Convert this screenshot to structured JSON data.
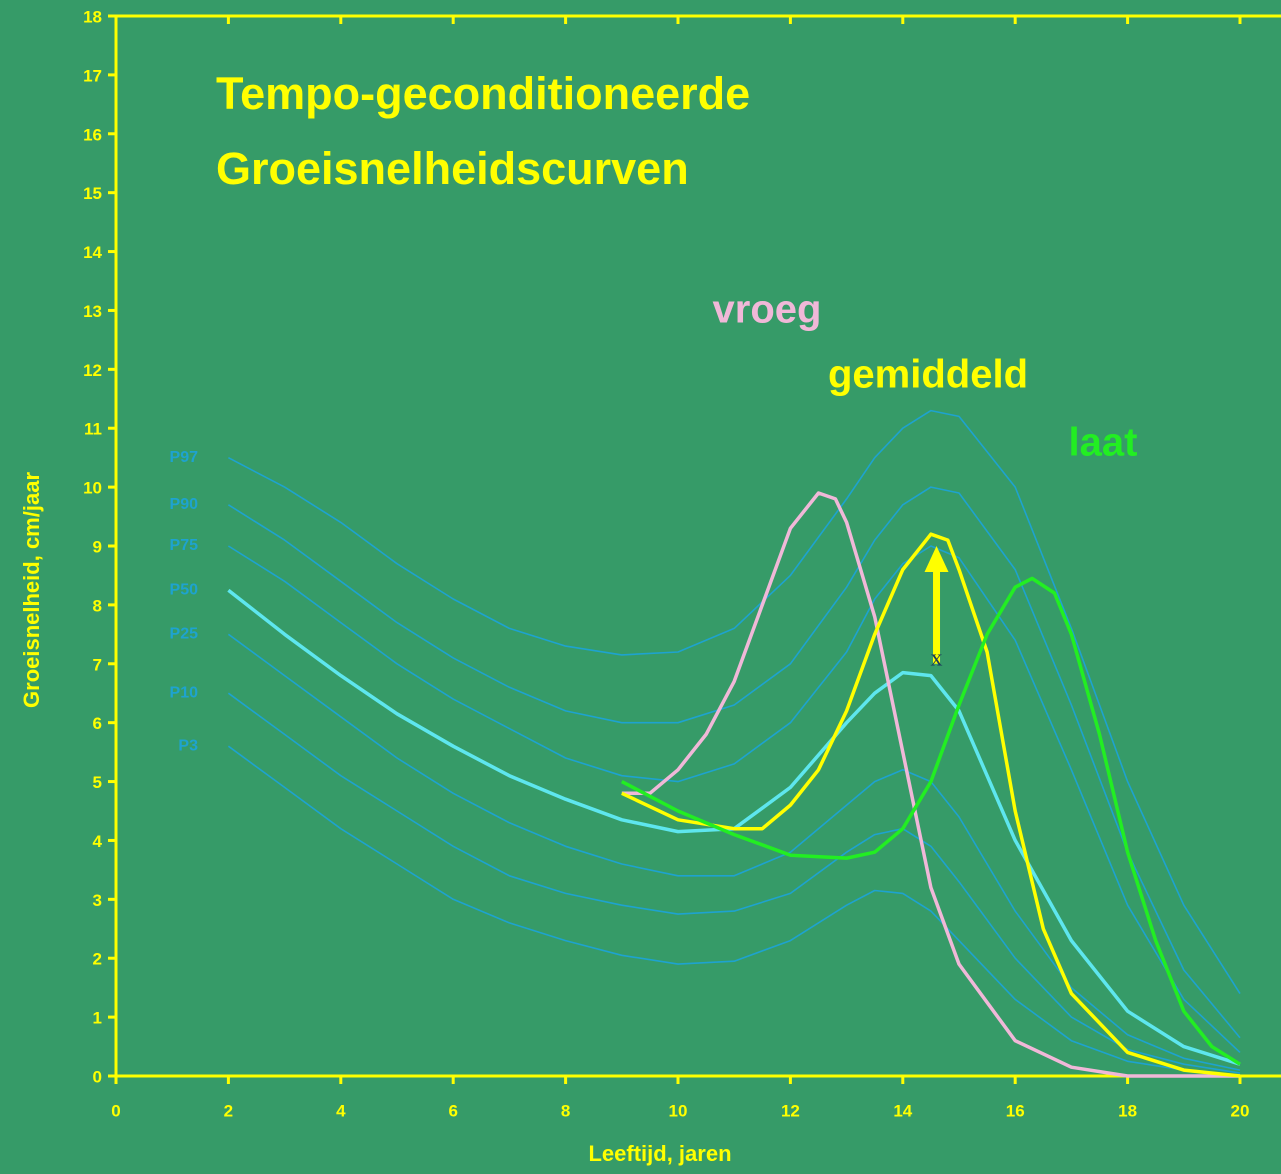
{
  "chart_data": {
    "type": "line",
    "title": [
      "Tempo-geconditioneerde",
      "Groeisnelheidscurven"
    ],
    "xlabel": "Leeftijd, jaren",
    "ylabel": "Groeisnelheid, cm/jaar",
    "xlim": [
      0,
      20
    ],
    "ylim": [
      0,
      18
    ],
    "xticks": [
      0,
      2,
      4,
      6,
      8,
      10,
      12,
      14,
      16,
      18,
      20
    ],
    "yticks": [
      0,
      1,
      2,
      3,
      4,
      5,
      6,
      7,
      8,
      9,
      10,
      11,
      12,
      13,
      14,
      15,
      16,
      17,
      18
    ],
    "series": [
      {
        "name": "P97",
        "color": "#1ea3cf",
        "x": [
          2,
          3,
          4,
          5,
          6,
          7,
          8,
          9,
          10,
          11,
          12,
          13,
          13.5,
          14,
          14.5,
          15,
          16,
          17,
          18,
          19,
          20
        ],
        "values": [
          10.5,
          10.0,
          9.4,
          8.7,
          8.1,
          7.6,
          7.3,
          7.15,
          7.2,
          7.6,
          8.5,
          9.8,
          10.5,
          11.0,
          11.3,
          11.2,
          10.0,
          7.6,
          5.0,
          2.9,
          1.4
        ]
      },
      {
        "name": "P90",
        "color": "#1ea3cf",
        "x": [
          2,
          3,
          4,
          5,
          6,
          7,
          8,
          9,
          10,
          11,
          12,
          13,
          13.5,
          14,
          14.5,
          15,
          16,
          17,
          18,
          19,
          20
        ],
        "values": [
          9.7,
          9.1,
          8.4,
          7.7,
          7.1,
          6.6,
          6.2,
          6.0,
          6.0,
          6.3,
          7.0,
          8.3,
          9.1,
          9.7,
          10.0,
          9.9,
          8.6,
          6.3,
          3.8,
          1.8,
          0.65
        ]
      },
      {
        "name": "P75",
        "color": "#1ea3cf",
        "x": [
          2,
          3,
          4,
          5,
          6,
          7,
          8,
          9,
          10,
          11,
          12,
          13,
          13.5,
          14,
          14.5,
          15,
          16,
          17,
          18,
          19,
          20
        ],
        "values": [
          9.0,
          8.4,
          7.7,
          7.0,
          6.4,
          5.9,
          5.4,
          5.1,
          5.0,
          5.3,
          6.0,
          7.2,
          8.1,
          8.7,
          9.0,
          8.8,
          7.4,
          5.2,
          2.9,
          1.3,
          0.4
        ]
      },
      {
        "name": "P50",
        "color": "#5ee6ee",
        "x": [
          2,
          3,
          4,
          5,
          6,
          7,
          8,
          9,
          10,
          11,
          12,
          13,
          13.5,
          14,
          14.5,
          15,
          16,
          17,
          18,
          19,
          20
        ],
        "values": [
          8.25,
          7.5,
          6.8,
          6.15,
          5.6,
          5.1,
          4.7,
          4.35,
          4.15,
          4.2,
          4.9,
          6.0,
          6.5,
          6.85,
          6.8,
          6.2,
          4.0,
          2.3,
          1.1,
          0.5,
          0.2
        ]
      },
      {
        "name": "P25",
        "color": "#1ea3cf",
        "x": [
          2,
          3,
          4,
          5,
          6,
          7,
          8,
          9,
          10,
          11,
          12,
          13,
          13.5,
          14,
          14.5,
          15,
          16,
          17,
          18,
          19,
          20
        ],
        "values": [
          7.5,
          6.8,
          6.1,
          5.4,
          4.8,
          4.3,
          3.9,
          3.6,
          3.4,
          3.4,
          3.8,
          4.6,
          5.0,
          5.2,
          5.0,
          4.4,
          2.8,
          1.5,
          0.7,
          0.3,
          0.1
        ]
      },
      {
        "name": "P10",
        "color": "#1ea3cf",
        "x": [
          2,
          3,
          4,
          5,
          6,
          7,
          8,
          9,
          10,
          11,
          12,
          13,
          13.5,
          14,
          14.5,
          15,
          16,
          17,
          18,
          19,
          20
        ],
        "values": [
          6.5,
          5.8,
          5.1,
          4.5,
          3.9,
          3.4,
          3.1,
          2.9,
          2.75,
          2.8,
          3.1,
          3.8,
          4.1,
          4.2,
          3.9,
          3.3,
          2.0,
          1.0,
          0.45,
          0.2,
          0.05
        ]
      },
      {
        "name": "P3",
        "color": "#1ea3cf",
        "x": [
          2,
          3,
          4,
          5,
          6,
          7,
          8,
          9,
          10,
          11,
          12,
          13,
          13.5,
          14,
          14.5,
          15,
          16,
          17,
          18,
          19,
          20
        ],
        "values": [
          5.6,
          4.9,
          4.2,
          3.6,
          3.0,
          2.6,
          2.3,
          2.05,
          1.9,
          1.95,
          2.3,
          2.9,
          3.15,
          3.1,
          2.8,
          2.3,
          1.3,
          0.6,
          0.25,
          0.1,
          0.0
        ]
      },
      {
        "name": "vroeg",
        "color": "#f0b8d8",
        "x": [
          9,
          9.5,
          10,
          10.5,
          11,
          11.5,
          12,
          12.5,
          12.8,
          13,
          13.5,
          14,
          14.5,
          15,
          16,
          17,
          18,
          20
        ],
        "values": [
          4.8,
          4.8,
          5.2,
          5.8,
          6.7,
          8.0,
          9.3,
          9.9,
          9.8,
          9.4,
          7.8,
          5.5,
          3.2,
          1.9,
          0.6,
          0.15,
          0.0,
          0.0
        ]
      },
      {
        "name": "gemiddeld",
        "color": "#ffff00",
        "x": [
          9,
          10,
          11,
          11.5,
          12,
          12.5,
          13,
          13.5,
          14,
          14.5,
          14.8,
          15,
          15.5,
          16,
          16.5,
          17,
          18,
          19,
          20
        ],
        "values": [
          4.8,
          4.35,
          4.2,
          4.2,
          4.6,
          5.2,
          6.2,
          7.5,
          8.6,
          9.2,
          9.1,
          8.6,
          7.2,
          4.5,
          2.5,
          1.4,
          0.4,
          0.1,
          0.0
        ]
      },
      {
        "name": "laat",
        "color": "#22ee22",
        "x": [
          9,
          10,
          11,
          12,
          13,
          13.5,
          14,
          14.5,
          15,
          15.5,
          16,
          16.3,
          16.7,
          17,
          17.5,
          18,
          18.5,
          19,
          19.5,
          20
        ],
        "values": [
          5.0,
          4.5,
          4.1,
          3.75,
          3.7,
          3.8,
          4.2,
          5.0,
          6.3,
          7.5,
          8.3,
          8.45,
          8.2,
          7.5,
          5.8,
          3.8,
          2.3,
          1.1,
          0.5,
          0.2
        ]
      }
    ],
    "annotation": {
      "label": "x",
      "x": 14.6,
      "from": 7.0,
      "to": 9.0
    }
  }
}
